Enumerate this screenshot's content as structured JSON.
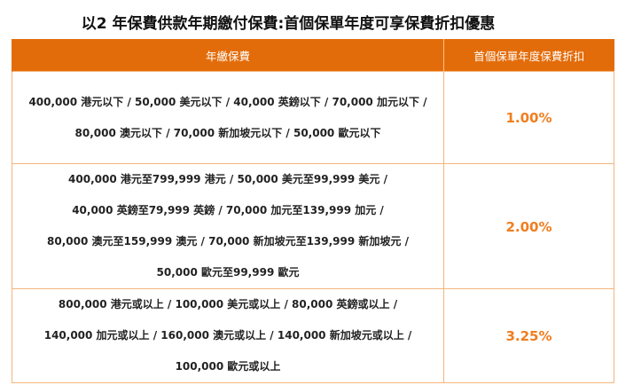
{
  "title": "以2 年保費供款年期繳付保費:首個保單年度可享保費折扣優惠",
  "table": {
    "headers": [
      "年繳保費",
      "首個保單年度保費折扣"
    ],
    "rows": [
      {
        "lines": [
          "400,000 港元以下 / 50,000 美元以下 / 40,000 英鎊以下 / 70,000 加元以下 /",
          "80,000 澳元以下 / 70,000 新加坡元以下 / 50,000 歐元以下"
        ],
        "discount": "1.00%"
      },
      {
        "lines": [
          "400,000 港元至799,999 港元 / 50,000 美元至99,999 美元 /",
          "40,000 英鎊至79,999 英鎊 / 70,000 加元至139,999 加元 /",
          "80,000 澳元至159,999 澳元 / 70,000 新加坡元至139,999 新加坡元 /",
          "50,000 歐元至99,999 歐元"
        ],
        "discount": "2.00%"
      },
      {
        "lines": [
          "800,000 港元或以上 / 100,000 美元或以上 / 80,000 英鎊或以上 /",
          "140,000 加元或以上 / 160,000 澳元或以上 / 140,000 新加坡元或以上 /",
          "100,000 歐元或以上"
        ],
        "discount": "3.25%"
      }
    ]
  },
  "colors": {
    "header_bg": "#e36c0a",
    "accent": "#f07e1f",
    "border": "#f5b57c"
  }
}
